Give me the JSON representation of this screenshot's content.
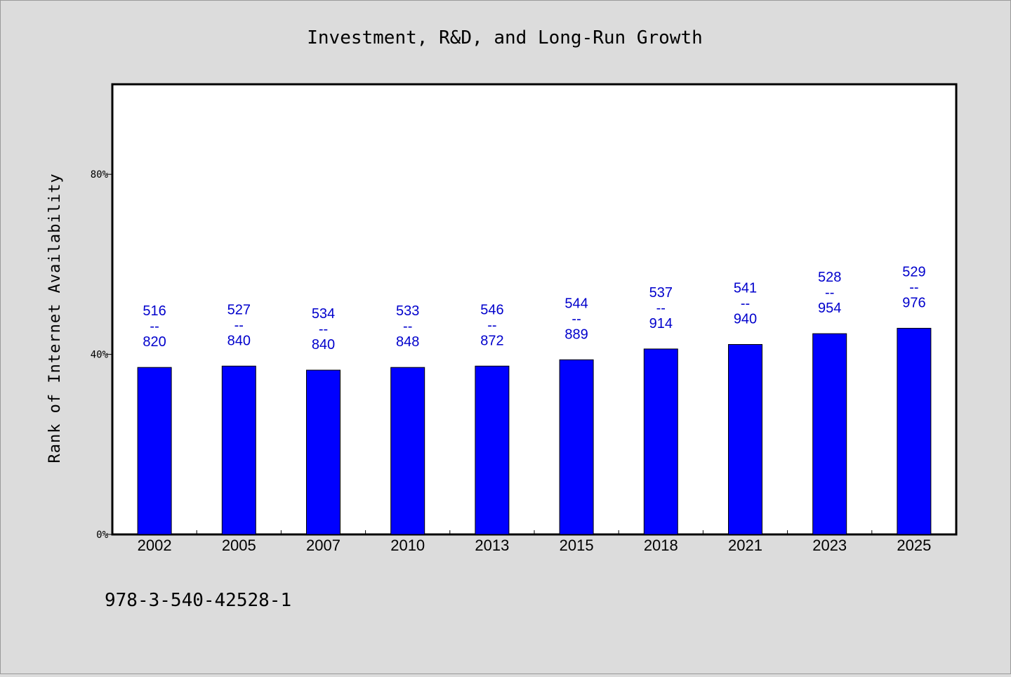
{
  "chart_data": {
    "type": "bar",
    "title": "Investment, R&D, and Long-Run Growth",
    "xlabel": "",
    "ylabel": "Rank of Internet Availability",
    "categories": [
      "2002",
      "2005",
      "2007",
      "2010",
      "2013",
      "2015",
      "2018",
      "2021",
      "2023",
      "2025"
    ],
    "values": [
      0.371,
      0.374,
      0.365,
      0.371,
      0.374,
      0.388,
      0.412,
      0.422,
      0.446,
      0.458
    ],
    "labels_top": [
      "516",
      "527",
      "534",
      "533",
      "546",
      "544",
      "537",
      "541",
      "528",
      "529"
    ],
    "labels_bottom": [
      "820",
      "840",
      "840",
      "848",
      "872",
      "889",
      "914",
      "940",
      "954",
      "976"
    ],
    "label_separator": "--",
    "ylim": [
      0,
      1.0
    ],
    "yticks": [
      0,
      0.4,
      0.8
    ],
    "ytick_labels": [
      "0%",
      "40%",
      "80%"
    ],
    "grid": false,
    "bar_color": "#0000ff",
    "label_color": "#0000cc",
    "plot_background": "#ffffff",
    "figure_background": "#dcdcdc"
  },
  "footer": {
    "isbn": "978-3-540-42528-1"
  }
}
